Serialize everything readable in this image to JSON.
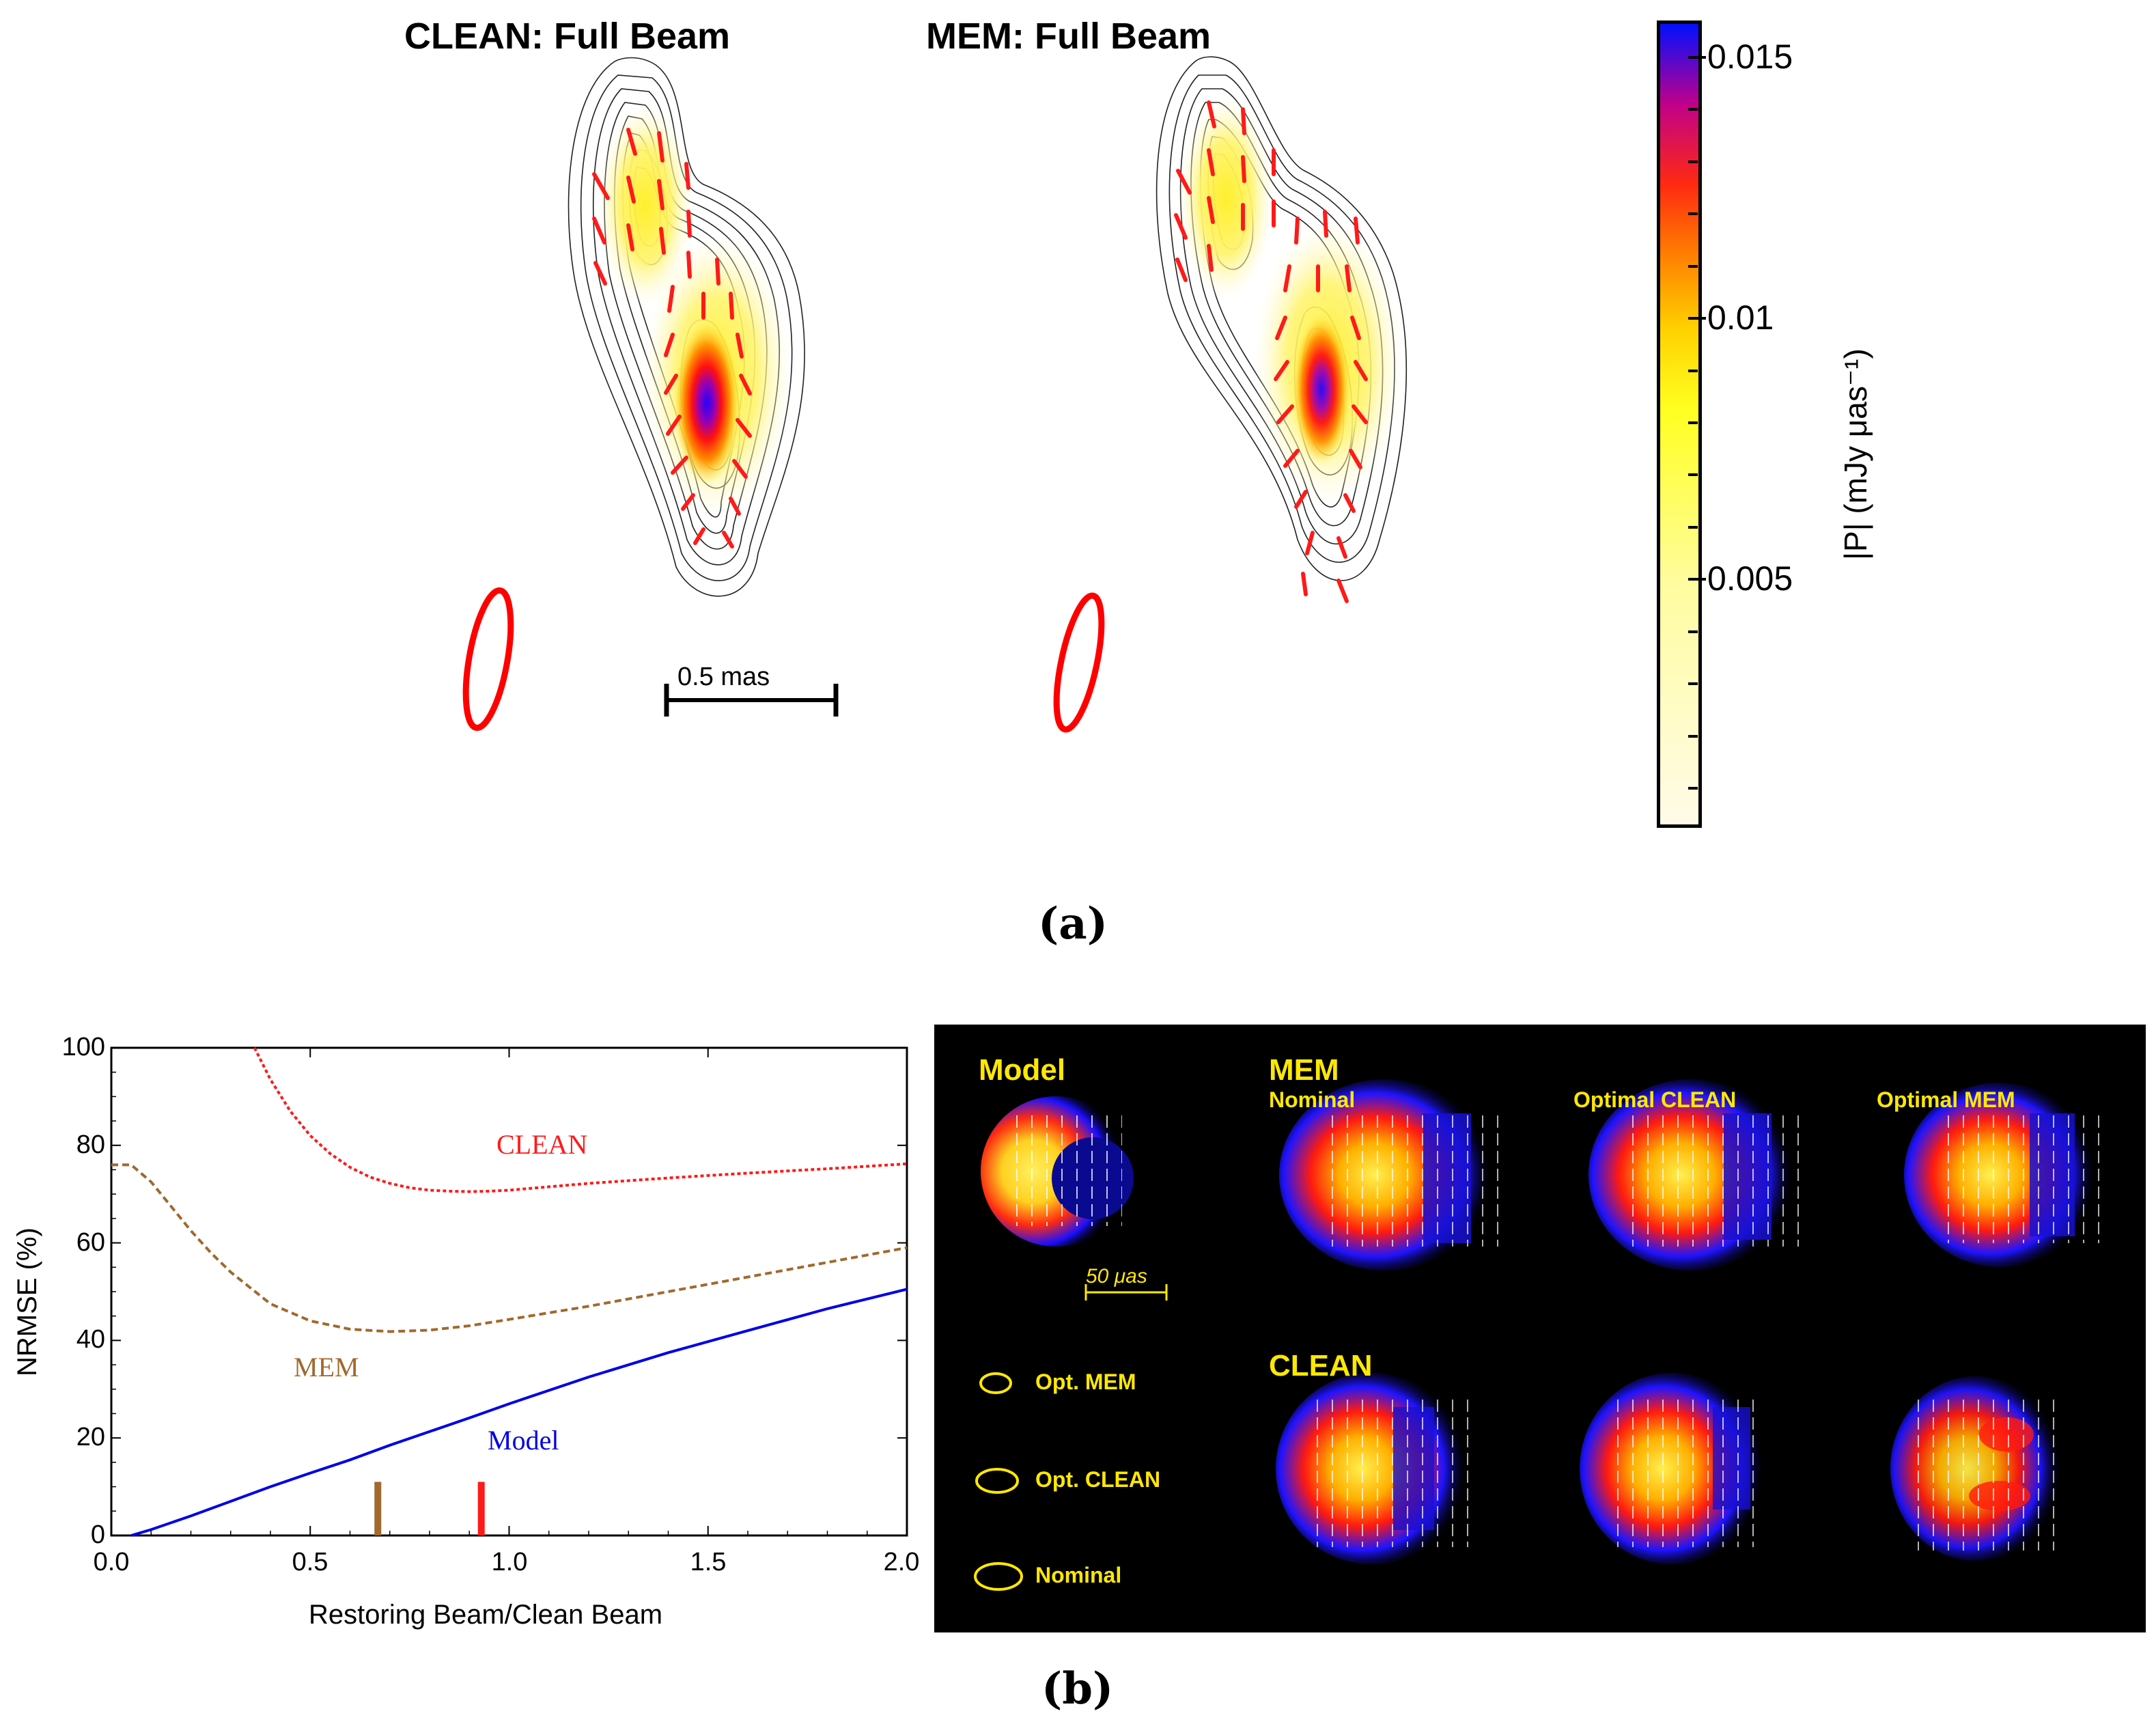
{
  "panel_a": {
    "clean_title": "CLEAN: Full Beam",
    "mem_title": "MEM: Full Beam",
    "scale_label": "0.5 mas",
    "colorbar": {
      "ticks": [
        "0.015",
        "0.01",
        "0.005"
      ],
      "label": "|P|   (mJy μas⁻¹)",
      "colors": [
        "#fffbe8",
        "#ffff30",
        "#ff8a00",
        "#ff1010",
        "#b000a0",
        "#0010ff"
      ]
    },
    "caption": "(a)"
  },
  "panel_b": {
    "caption": "(b)",
    "chart_data": {
      "type": "line",
      "xlabel": "Restoring Beam/Clean Beam",
      "ylabel": "NRMSE (%)",
      "xlim": [
        0.0,
        2.0
      ],
      "ylim": [
        0,
        100
      ],
      "xticks": [
        "0.0",
        "0.5",
        "1.0",
        "1.5",
        "2.0"
      ],
      "yticks": [
        "0",
        "20",
        "40",
        "60",
        "80",
        "100"
      ],
      "series": [
        {
          "name": "CLEAN",
          "color": "#ff1a1a",
          "style": "dotted",
          "x": [
            0.36,
            0.4,
            0.45,
            0.5,
            0.55,
            0.6,
            0.65,
            0.7,
            0.75,
            0.8,
            0.85,
            0.9,
            0.95,
            1.0,
            1.1,
            1.2,
            1.4,
            1.6,
            1.8,
            2.0
          ],
          "y": [
            100,
            93.5,
            87,
            82,
            78.3,
            75.5,
            73.5,
            72.2,
            71.3,
            70.8,
            70.6,
            70.5,
            70.6,
            70.8,
            71.5,
            72.2,
            73.3,
            74.3,
            75.2,
            76.2
          ]
        },
        {
          "name": "MEM",
          "color": "#a0692e",
          "style": "dashed",
          "x": [
            0.0,
            0.05,
            0.1,
            0.15,
            0.2,
            0.25,
            0.3,
            0.4,
            0.5,
            0.6,
            0.7,
            0.8,
            0.9,
            1.0,
            1.2,
            1.4,
            1.6,
            1.8,
            2.0
          ],
          "y": [
            76,
            76,
            72.5,
            67.5,
            62.5,
            58,
            54,
            47.5,
            44,
            42.3,
            41.8,
            42.1,
            43,
            44.3,
            47,
            50,
            53,
            56,
            59
          ]
        },
        {
          "name": "Model",
          "color": "#0000e8",
          "style": "solid",
          "x": [
            0.05,
            0.1,
            0.2,
            0.3,
            0.4,
            0.5,
            0.6,
            0.7,
            0.8,
            0.9,
            1.0,
            1.2,
            1.4,
            1.6,
            1.8,
            2.0
          ],
          "y": [
            0,
            1.2,
            4,
            7,
            10,
            12.8,
            15.5,
            18.5,
            21.3,
            24.1,
            27,
            32.5,
            37.5,
            42,
            46.5,
            50.5
          ]
        }
      ],
      "series_labels": [
        "CLEAN",
        "MEM",
        "Model"
      ],
      "markers": [
        {
          "name": "MEM optimum",
          "x": 0.67,
          "height": 11,
          "color": "#a0692e"
        },
        {
          "name": "CLEAN optimum",
          "x": 0.93,
          "height": 11,
          "color": "#ff1a1a"
        }
      ]
    },
    "image_grid": {
      "model_label": "Model",
      "mem_label": "MEM",
      "nominal_label": "Nominal",
      "optimal_clean_label": "Optimal CLEAN",
      "optimal_mem_label": "Optimal MEM",
      "clean_label": "CLEAN",
      "scale_label": "50 μas",
      "legend": [
        "Opt. MEM",
        "Opt. CLEAN",
        "Nominal"
      ]
    }
  }
}
